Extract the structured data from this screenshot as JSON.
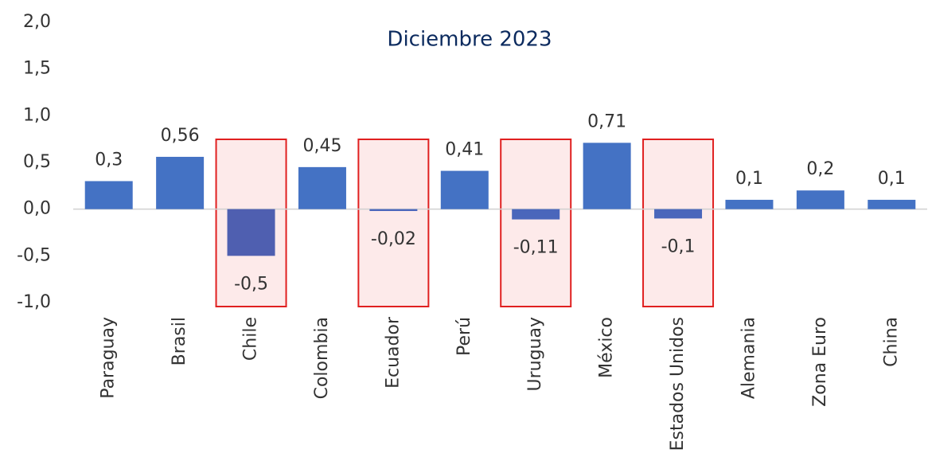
{
  "chart_data": {
    "type": "bar",
    "title": "Diciembre 2023",
    "categories": [
      "Paraguay",
      "Brasil",
      "Chile",
      "Colombia",
      "Ecuador",
      "Perú",
      "Uruguay",
      "México",
      "Estados Unidos",
      "Alemania",
      "Zona Euro",
      "China"
    ],
    "values": [
      0.3,
      0.56,
      -0.5,
      0.45,
      -0.02,
      0.41,
      -0.11,
      0.71,
      -0.1,
      0.1,
      0.2,
      0.1
    ],
    "value_labels": [
      "0,3",
      "0,56",
      "-0,5",
      "0,45",
      "-0,02",
      "0,41",
      "-0,11",
      "0,71",
      "-0,1",
      "0,1",
      "0,2",
      "0,1"
    ],
    "colors": [
      "#4472c4",
      "#4472c4",
      "#4f5fb0",
      "#4472c4",
      "#4a66bb",
      "#4472c4",
      "#4a66bb",
      "#4472c4",
      "#4a66bb",
      "#4472c4",
      "#4472c4",
      "#4472c4"
    ],
    "highlight": [
      2,
      4,
      6,
      8
    ],
    "ylim": [
      -1,
      2
    ],
    "yticks": [
      {
        "value": -1,
        "label": "-1,0"
      },
      {
        "value": -0.5,
        "label": "-0,5"
      },
      {
        "value": 0,
        "label": "0,0"
      },
      {
        "value": 0.5,
        "label": "0,5"
      },
      {
        "value": 1,
        "label": "1,0"
      },
      {
        "value": 1.5,
        "label": "1,5"
      },
      {
        "value": 2,
        "label": "2,0"
      }
    ],
    "grid": false
  }
}
